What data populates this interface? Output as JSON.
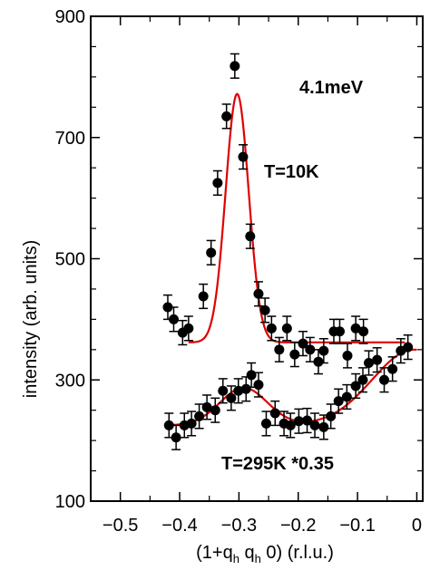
{
  "chart_data": {
    "type": "scatter",
    "title": "",
    "xlabel": "(1+q_h  q_h  0) (r.l.u.)",
    "ylabel": "intensity (arb. units)",
    "xlim": [
      -0.55,
      0.01
    ],
    "ylim": [
      100,
      900
    ],
    "xticks": [
      -0.5,
      -0.4,
      -0.3,
      -0.2,
      -0.1,
      0
    ],
    "xtick_labels": [
      "−0.5",
      "−0.4",
      "−0.3",
      "−0.2",
      "−0.1",
      "0"
    ],
    "yticks": [
      100,
      300,
      500,
      700,
      900
    ],
    "ytick_labels": [
      "100",
      "300",
      "500",
      "700",
      "900"
    ],
    "grid": false,
    "annotations": [
      "4.1meV",
      "T=10K",
      "T=295K *0.35"
    ],
    "series": [
      {
        "name": "T=10K",
        "color": "#000000",
        "err": 20,
        "points": [
          [
            -0.42,
            420
          ],
          [
            -0.41,
            400
          ],
          [
            -0.395,
            378
          ],
          [
            -0.385,
            385
          ],
          [
            -0.36,
            438
          ],
          [
            -0.347,
            510
          ],
          [
            -0.336,
            625
          ],
          [
            -0.321,
            735
          ],
          [
            -0.307,
            818
          ],
          [
            -0.293,
            668
          ],
          [
            -0.281,
            537
          ],
          [
            -0.267,
            442
          ],
          [
            -0.256,
            415
          ],
          [
            -0.245,
            385
          ],
          [
            -0.232,
            350
          ],
          [
            -0.219,
            385
          ],
          [
            -0.206,
            342
          ],
          [
            -0.192,
            360
          ],
          [
            -0.18,
            350
          ],
          [
            -0.166,
            330
          ],
          [
            -0.157,
            348
          ],
          [
            -0.14,
            380
          ],
          [
            -0.13,
            380
          ],
          [
            -0.117,
            340
          ],
          [
            -0.103,
            385
          ],
          [
            -0.09,
            380
          ]
        ]
      },
      {
        "name": "T=295K *0.35",
        "color": "#000000",
        "err": 20,
        "points": [
          [
            -0.418,
            225
          ],
          [
            -0.406,
            205
          ],
          [
            -0.392,
            225
          ],
          [
            -0.38,
            228
          ],
          [
            -0.367,
            240
          ],
          [
            -0.354,
            255
          ],
          [
            -0.34,
            250
          ],
          [
            -0.327,
            282
          ],
          [
            -0.313,
            270
          ],
          [
            -0.301,
            282
          ],
          [
            -0.288,
            285
          ],
          [
            -0.279,
            308
          ],
          [
            -0.267,
            292
          ],
          [
            -0.254,
            228
          ],
          [
            -0.239,
            245
          ],
          [
            -0.224,
            228
          ],
          [
            -0.213,
            225
          ],
          [
            -0.199,
            232
          ],
          [
            -0.185,
            233
          ],
          [
            -0.172,
            225
          ],
          [
            -0.157,
            222
          ],
          [
            -0.145,
            240
          ],
          [
            -0.132,
            265
          ],
          [
            -0.118,
            272
          ],
          [
            -0.103,
            290
          ],
          [
            -0.091,
            300
          ],
          [
            -0.081,
            328
          ],
          [
            -0.067,
            333
          ],
          [
            -0.055,
            300
          ],
          [
            -0.041,
            318
          ],
          [
            -0.027,
            348
          ],
          [
            -0.015,
            354
          ]
        ]
      }
    ],
    "fits": [
      {
        "series": "T=10K",
        "color": "#e00000",
        "baseline": 362,
        "peaks": [
          {
            "amp": 410,
            "center": -0.303,
            "sigma": 0.0195
          }
        ],
        "x_range": [
          -0.385,
          -0.02
        ]
      },
      {
        "series": "T=295K *0.35",
        "color": "#e00000",
        "baseline": 225,
        "slope": 0,
        "peaks": [
          {
            "amp": 62,
            "center": -0.292,
            "sigma": 0.04
          },
          {
            "amp": 125,
            "center": -0.005,
            "sigma": 0.07
          }
        ],
        "x_range": [
          -0.42,
          0.0
        ]
      }
    ]
  }
}
